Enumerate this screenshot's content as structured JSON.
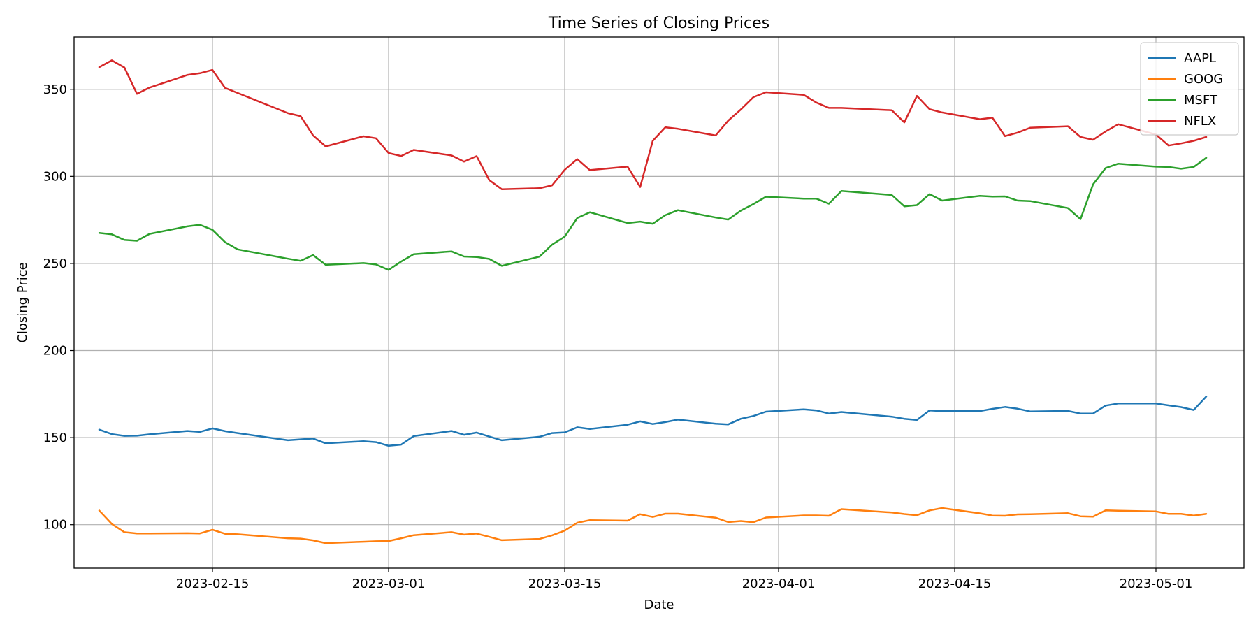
{
  "chart_data": {
    "type": "line",
    "title": "Time Series of Closing Prices",
    "xlabel": "Date",
    "ylabel": "Closing Price",
    "grid": true,
    "legend_position": "top-right",
    "xlim": [
      "2023-02-04",
      "2023-05-08"
    ],
    "ylim": [
      75,
      380
    ],
    "x_ticks": [
      "2023-02-15",
      "2023-03-01",
      "2023-03-15",
      "2023-04-01",
      "2023-04-15",
      "2023-05-01"
    ],
    "y_ticks": [
      100,
      150,
      200,
      250,
      300,
      350
    ],
    "x": [
      "2023-02-06",
      "2023-02-07",
      "2023-02-08",
      "2023-02-09",
      "2023-02-10",
      "2023-02-13",
      "2023-02-14",
      "2023-02-15",
      "2023-02-16",
      "2023-02-17",
      "2023-02-21",
      "2023-02-22",
      "2023-02-23",
      "2023-02-24",
      "2023-02-27",
      "2023-02-28",
      "2023-03-01",
      "2023-03-02",
      "2023-03-03",
      "2023-03-06",
      "2023-03-07",
      "2023-03-08",
      "2023-03-09",
      "2023-03-10",
      "2023-03-13",
      "2023-03-14",
      "2023-03-15",
      "2023-03-16",
      "2023-03-17",
      "2023-03-20",
      "2023-03-21",
      "2023-03-22",
      "2023-03-23",
      "2023-03-24",
      "2023-03-27",
      "2023-03-28",
      "2023-03-29",
      "2023-03-30",
      "2023-03-31",
      "2023-04-03",
      "2023-04-04",
      "2023-04-05",
      "2023-04-06",
      "2023-04-10",
      "2023-04-11",
      "2023-04-12",
      "2023-04-13",
      "2023-04-14",
      "2023-04-17",
      "2023-04-18",
      "2023-04-19",
      "2023-04-20",
      "2023-04-21",
      "2023-04-24",
      "2023-04-25",
      "2023-04-26",
      "2023-04-27",
      "2023-04-28",
      "2023-05-01",
      "2023-05-02",
      "2023-05-03",
      "2023-05-04",
      "2023-05-05"
    ],
    "series": [
      {
        "name": "AAPL",
        "color": "#1f77b4",
        "values": [
          154.6,
          152.0,
          151.0,
          151.1,
          151.9,
          153.8,
          153.3,
          155.3,
          153.7,
          152.6,
          148.5,
          149.0,
          149.5,
          146.7,
          147.9,
          147.4,
          145.3,
          146.0,
          150.9,
          153.8,
          151.6,
          152.9,
          150.6,
          148.5,
          150.5,
          152.6,
          153.0,
          155.9,
          155.0,
          157.4,
          159.3,
          157.8,
          158.9,
          160.3,
          158.0,
          157.6,
          160.8,
          162.4,
          164.9,
          166.2,
          165.6,
          163.8,
          164.7,
          162.0,
          160.8,
          160.1,
          165.6,
          165.2,
          165.2,
          166.5,
          167.6,
          166.6,
          165.0,
          165.3,
          163.8,
          163.8,
          168.4,
          169.6,
          169.6,
          168.5,
          167.5,
          165.8,
          173.6
        ]
      },
      {
        "name": "GOOG",
        "color": "#ff7f0e",
        "values": [
          108.1,
          100.4,
          95.7,
          95.0,
          95.0,
          95.1,
          95.0,
          97.1,
          94.8,
          94.5,
          92.2,
          92.0,
          91.0,
          89.4,
          90.2,
          90.5,
          90.6,
          92.2,
          94.0,
          95.7,
          94.3,
          94.9,
          93.0,
          91.1,
          91.8,
          93.9,
          96.6,
          101.1,
          102.6,
          102.3,
          106.0,
          104.4,
          106.3,
          106.3,
          104.0,
          101.5,
          102.1,
          101.4,
          104.1,
          105.3,
          105.3,
          105.1,
          108.9,
          107.0,
          106.1,
          105.4,
          108.2,
          109.5,
          106.5,
          105.2,
          105.1,
          105.9,
          106.0,
          106.6,
          104.8,
          104.6,
          108.2,
          108.0,
          107.6,
          106.2,
          106.2,
          105.2,
          106.2
        ]
      },
      {
        "name": "MSFT",
        "color": "#2ca02c",
        "values": [
          267.5,
          266.7,
          263.5,
          263.0,
          267.0,
          271.3,
          272.2,
          269.3,
          262.2,
          258.1,
          252.7,
          251.5,
          254.8,
          249.2,
          250.2,
          249.4,
          246.3,
          251.1,
          255.3,
          256.9,
          254.0,
          253.7,
          252.6,
          248.6,
          253.9,
          260.8,
          265.4,
          276.1,
          279.4,
          273.2,
          274.0,
          272.8,
          277.7,
          280.6,
          276.4,
          275.2,
          280.3,
          284.1,
          288.3,
          287.2,
          287.2,
          284.3,
          291.6,
          289.3,
          282.8,
          283.5,
          289.8,
          286.1,
          288.8,
          288.4,
          288.5,
          286.1,
          285.8,
          281.8,
          275.4,
          295.4,
          304.8,
          307.3,
          305.6,
          305.4,
          304.4,
          305.4,
          310.7
        ]
      },
      {
        "name": "NFLX",
        "color": "#d62728",
        "values": [
          362.7,
          366.6,
          362.5,
          347.4,
          351.0,
          358.2,
          359.2,
          361.1,
          350.8,
          347.9,
          336.3,
          334.6,
          323.5,
          317.2,
          323.0,
          321.9,
          313.4,
          311.7,
          315.2,
          312.0,
          308.5,
          311.6,
          297.9,
          292.6,
          293.2,
          294.9,
          303.8,
          309.9,
          303.6,
          305.6,
          293.9,
          320.4,
          328.2,
          327.3,
          323.5,
          332.0,
          338.4,
          345.5,
          348.3,
          346.8,
          342.4,
          339.3,
          339.3,
          338.0,
          331.0,
          346.2,
          338.6,
          336.7,
          332.8,
          333.7,
          323.1,
          325.1,
          327.9,
          328.8,
          322.6,
          321.0,
          325.8,
          329.9,
          324.0,
          317.7,
          318.9,
          320.4,
          322.6
        ]
      }
    ]
  }
}
